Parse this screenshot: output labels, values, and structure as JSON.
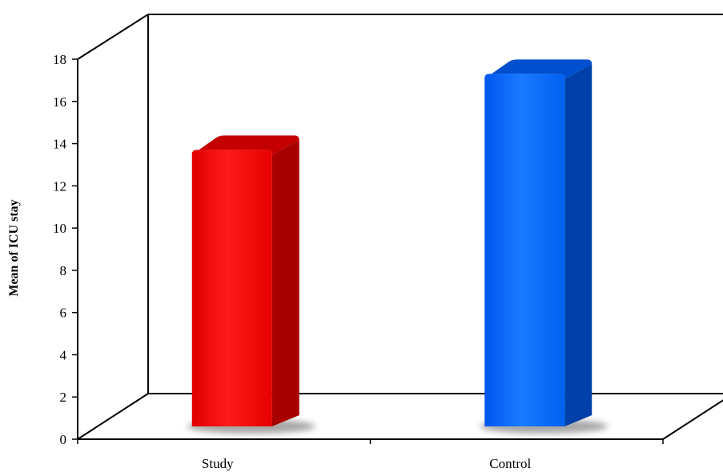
{
  "chart_data": {
    "type": "bar",
    "style": "3d-column",
    "categories": [
      "Study",
      "Control"
    ],
    "values": [
      13.4,
      17.0
    ],
    "colors": [
      "#ff0000",
      "#0066ff"
    ],
    "ylabel": "Mean of ICU stay",
    "xlabel": "",
    "title": "",
    "ylim": [
      0,
      18
    ],
    "yticks": [
      "0",
      "2",
      "4",
      "6",
      "8",
      "10",
      "12",
      "14",
      "16",
      "18"
    ],
    "grid": false,
    "legend": "none"
  }
}
